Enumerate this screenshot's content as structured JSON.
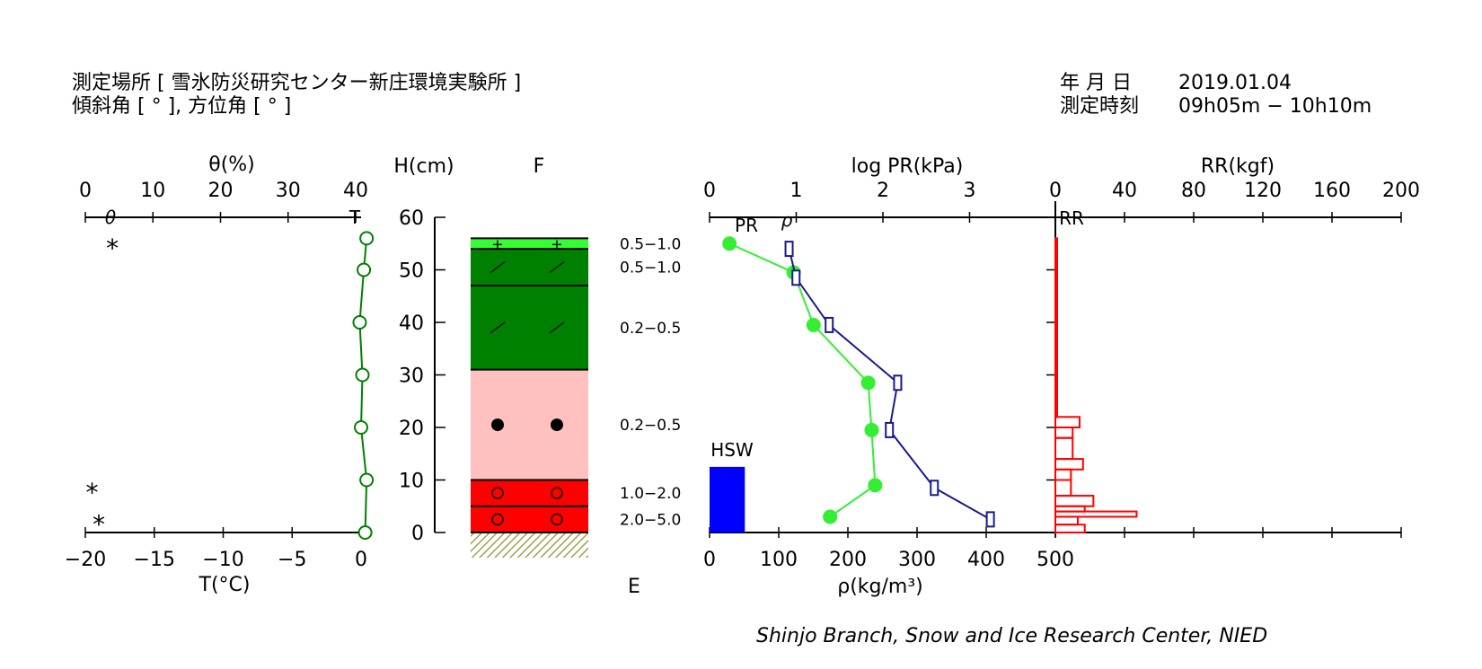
{
  "header": {
    "location_label": "測定場所 [ 雪氷防災研究センター新庄環境実験所 ]",
    "angle_label": "傾斜角 [ ° ], 方位角 [ ° ]",
    "date_label": "年 月 日",
    "date_value": "2019.01.04",
    "time_label": "測定時刻",
    "time_value": "09h05m − 10h10m"
  },
  "footer": {
    "credit": "Shinjo Branch, Snow and Ice Research Center, NIED"
  },
  "chart_data": [
    {
      "type": "line",
      "name_panel": "temperature",
      "title": "θ(%)",
      "top_axis": {
        "label": "θ(%)",
        "ticks": [
          0,
          10,
          20,
          30,
          40
        ],
        "inner_label": "θ",
        "end_label": "T"
      },
      "xlabel": "T(°C)",
      "xlim": [
        -20,
        0
      ],
      "xticks": [
        -20,
        -15,
        -10,
        -5,
        0
      ],
      "ylabel": "H(cm)",
      "ylim": [
        0,
        60
      ],
      "yticks": [
        0,
        10,
        20,
        30,
        40,
        50,
        60
      ],
      "temperature_points": [
        {
          "H": 56,
          "T": 0.4
        },
        {
          "H": 50,
          "T": 0.2
        },
        {
          "H": 40,
          "T": -0.1
        },
        {
          "H": 30,
          "T": 0.1
        },
        {
          "H": 20,
          "T": 0.0
        },
        {
          "H": 10,
          "T": 0.4
        },
        {
          "H": 0,
          "T": 0.3
        }
      ],
      "theta_markers": [
        {
          "H": 54.5,
          "theta": 4
        },
        {
          "H": 8,
          "theta": 1
        },
        {
          "H": 2,
          "theta": 2
        }
      ],
      "series_color": "#008000"
    },
    {
      "type": "table",
      "name_panel": "layers",
      "column_label_top": "F",
      "column_label_bottom": "E",
      "layers": [
        {
          "bottom": 54,
          "top": 56,
          "color": "#33ff33",
          "symbol": "+"
        },
        {
          "bottom": 47,
          "top": 54,
          "color": "#008000",
          "symbol": "/"
        },
        {
          "bottom": 31,
          "top": 47,
          "color": "#008000",
          "symbol": "/"
        },
        {
          "bottom": 10,
          "top": 31,
          "color": "#ffc0c0",
          "symbol": "●"
        },
        {
          "bottom": 5,
          "top": 10,
          "color": "#ff0000",
          "symbol": "○"
        },
        {
          "bottom": 0,
          "top": 5,
          "color": "#ff0000",
          "symbol": "○"
        }
      ],
      "grain_size_labels": [
        {
          "H": 55,
          "text": "0.5−1.0"
        },
        {
          "H": 50.5,
          "text": "0.5−1.0"
        },
        {
          "H": 39,
          "text": "0.2−0.5"
        },
        {
          "H": 20.5,
          "text": "0.2−0.5"
        },
        {
          "H": 7.5,
          "text": "1.0−2.0"
        },
        {
          "H": 2.5,
          "text": "2.0−5.0"
        }
      ]
    },
    {
      "type": "line",
      "name_panel": "density_hardness",
      "title": "log PR(kPa)",
      "top_axis": {
        "label": "log PR(kPa)",
        "ticks": [
          0,
          1,
          2,
          3
        ],
        "xlim": [
          0,
          4
        ]
      },
      "xlabel": "ρ(kg/m³)",
      "xlim": [
        0,
        500
      ],
      "xticks": [
        0,
        100,
        200,
        300,
        400,
        500
      ],
      "ylim": [
        0,
        60
      ],
      "series": [
        {
          "name": "PR",
          "color": "#33ee33",
          "points": [
            {
              "H": 55,
              "logPR": 0.23
            },
            {
              "H": 49.5,
              "logPR": 0.97
            },
            {
              "H": 39.5,
              "logPR": 1.2
            },
            {
              "H": 28.5,
              "logPR": 1.83
            },
            {
              "H": 19.5,
              "logPR": 1.87
            },
            {
              "H": 9,
              "logPR": 1.91
            },
            {
              "H": 3,
              "logPR": 1.39
            }
          ]
        },
        {
          "name": "ρ",
          "color": "#1a1a8c",
          "points": [
            {
              "H": 54,
              "rho": 115
            },
            {
              "H": 48.5,
              "rho": 125
            },
            {
              "H": 39.5,
              "rho": 173
            },
            {
              "H": 28.5,
              "rho": 272
            },
            {
              "H": 19.5,
              "rho": 260
            },
            {
              "H": 8.5,
              "rho": 325
            },
            {
              "H": 2.5,
              "rho": 406
            }
          ]
        }
      ],
      "hsw": {
        "label": "HSW",
        "value": 51,
        "height": 12.5,
        "color": "#0000ff"
      },
      "series_labels": [
        "PR",
        "ρ"
      ]
    },
    {
      "type": "bar",
      "name_panel": "ram_resistance",
      "title": "RR(kgf)",
      "top_axis": {
        "label": "RR(kgf)",
        "ticks": [
          0,
          40,
          80,
          120,
          160,
          200
        ],
        "xlim": [
          0,
          200
        ]
      },
      "inner_label": "RR",
      "color": "#ff0000",
      "bars": [
        {
          "bottom": 22,
          "top": 56,
          "value": 1
        },
        {
          "bottom": 20,
          "top": 22,
          "value": 14
        },
        {
          "bottom": 18,
          "top": 20,
          "value": 10
        },
        {
          "bottom": 14,
          "top": 18,
          "value": 10
        },
        {
          "bottom": 12,
          "top": 14,
          "value": 16
        },
        {
          "bottom": 10,
          "top": 12,
          "value": 9
        },
        {
          "bottom": 7,
          "top": 10,
          "value": 9
        },
        {
          "bottom": 5,
          "top": 7,
          "value": 22
        },
        {
          "bottom": 4,
          "top": 5,
          "value": 17
        },
        {
          "bottom": 3,
          "top": 4,
          "value": 47
        },
        {
          "bottom": 1.5,
          "top": 3,
          "value": 13
        },
        {
          "bottom": 0,
          "top": 1.5,
          "value": 17
        }
      ]
    }
  ]
}
